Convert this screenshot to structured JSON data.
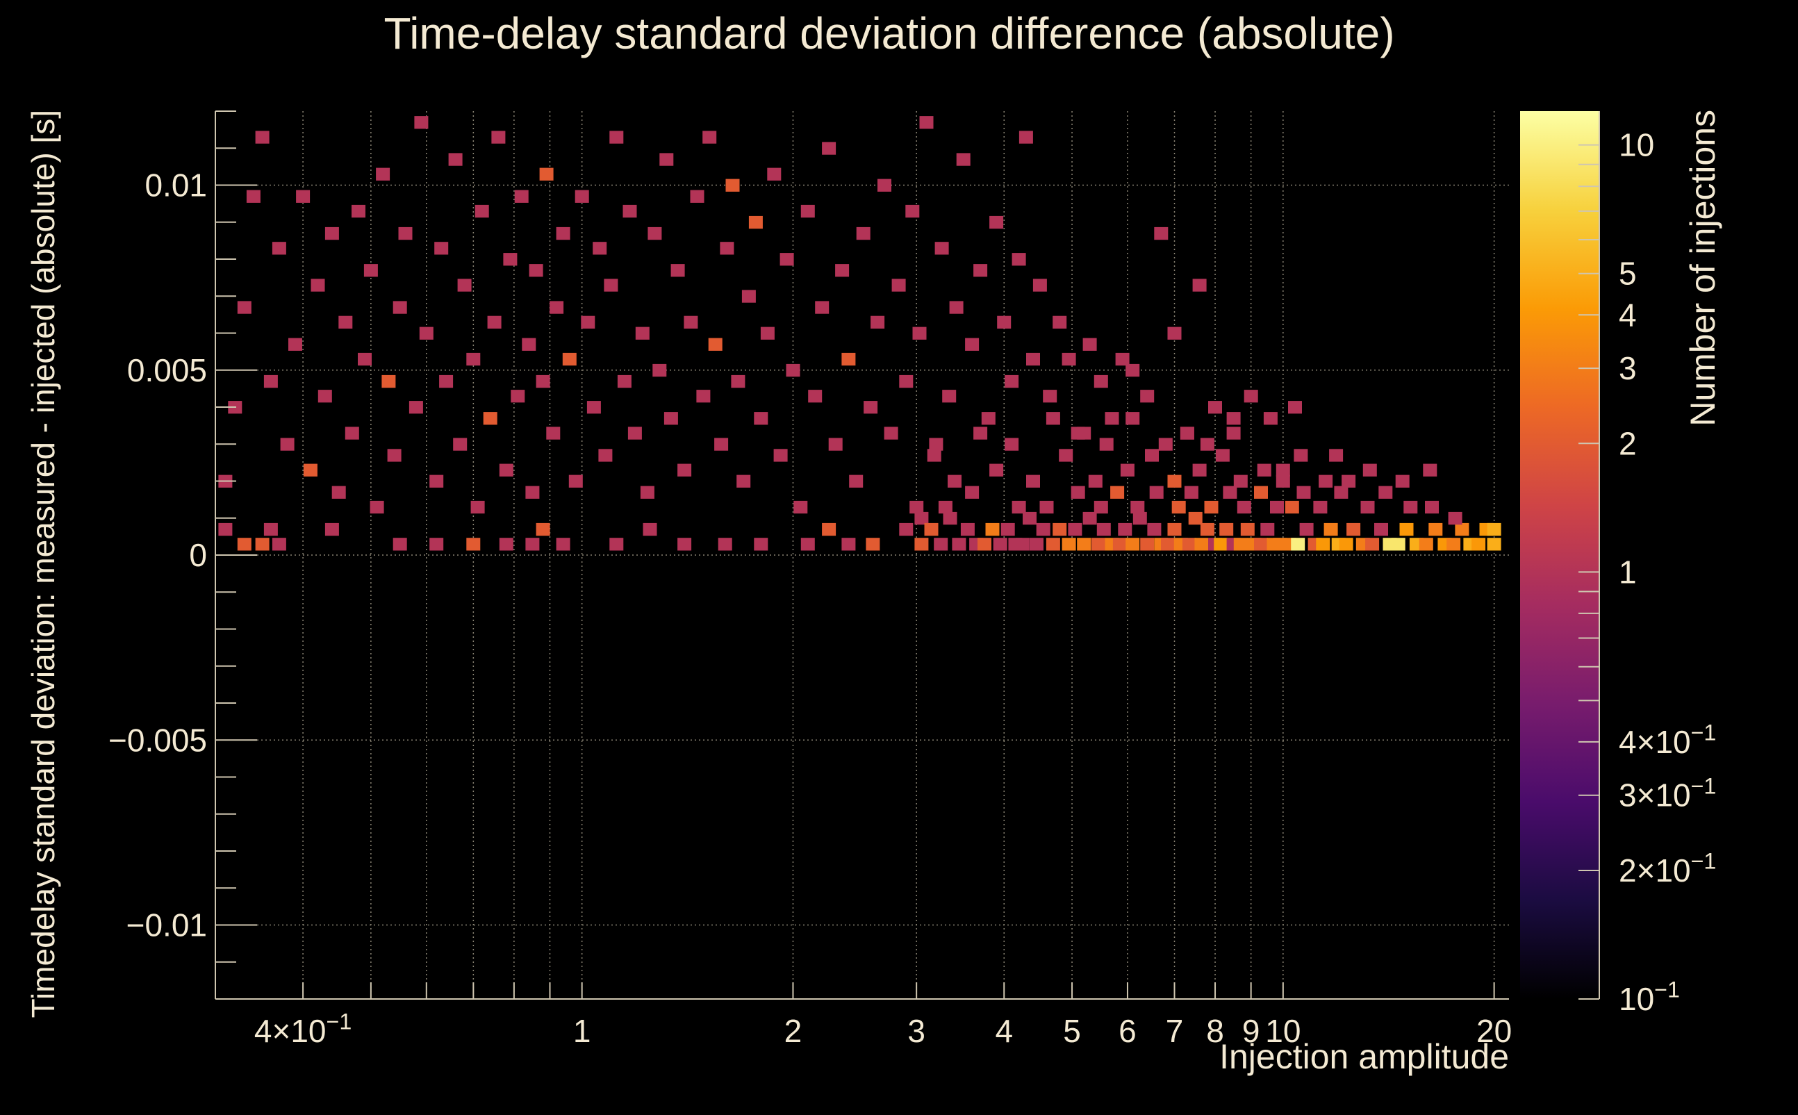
{
  "chart_data": {
    "type": "heatmap",
    "title": "Time-delay standard deviation difference (absolute)",
    "xlabel": "Injection amplitude",
    "ylabel": "Timedelay standard deviation: measured - injected (absolute) [s]",
    "colorbar_label": "Number of injections",
    "x_scale": "log",
    "xlim": [
      0.3,
      21
    ],
    "ylim": [
      -0.012,
      0.012
    ],
    "z_scale": "log",
    "zlim": [
      0.1,
      12
    ],
    "grid": true,
    "x_tick_labels": [
      {
        "value": 0.4,
        "label": "4×10",
        "exp": "−1"
      },
      {
        "value": 1,
        "label": "1"
      },
      {
        "value": 2,
        "label": "2"
      },
      {
        "value": 3,
        "label": "3"
      },
      {
        "value": 4,
        "label": "4"
      },
      {
        "value": 5,
        "label": "5"
      },
      {
        "value": 6,
        "label": "6"
      },
      {
        "value": 7,
        "label": "7"
      },
      {
        "value": 8,
        "label": "8"
      },
      {
        "value": 9,
        "label": "9"
      },
      {
        "value": 10,
        "label": "10"
      },
      {
        "value": 20,
        "label": "20"
      }
    ],
    "y_tick_labels": [
      {
        "value": 0.01,
        "label": "0.01"
      },
      {
        "value": 0.005,
        "label": "0.005"
      },
      {
        "value": 0,
        "label": "0"
      },
      {
        "value": -0.005,
        "label": "−0.005"
      },
      {
        "value": -0.01,
        "label": "−0.01"
      }
    ],
    "z_tick_labels": [
      {
        "value": 10,
        "label": "10"
      },
      {
        "value": 5,
        "label": "5"
      },
      {
        "value": 4,
        "label": "4"
      },
      {
        "value": 3,
        "label": "3"
      },
      {
        "value": 2,
        "label": "2"
      },
      {
        "value": 1,
        "label": "1"
      },
      {
        "value": 0.4,
        "label": "4×10",
        "exp": "−1"
      },
      {
        "value": 0.3,
        "label": "3×10",
        "exp": "−1"
      },
      {
        "value": 0.2,
        "label": "2×10",
        "exp": "−1"
      },
      {
        "value": 0.1,
        "label": "10",
        "exp": "−1"
      }
    ],
    "colormap": [
      "#000000",
      "#1b0c41",
      "#4a0c6b",
      "#781c6d",
      "#a52c60",
      "#cf4446",
      "#ed6925",
      "#fb9b06",
      "#f7d13d",
      "#fcffa4"
    ],
    "cells": [
      [
        0.31,
        0.0007,
        1
      ],
      [
        0.33,
        0.0003,
        2
      ],
      [
        0.35,
        0.0003,
        2
      ],
      [
        0.36,
        0.0007,
        1
      ],
      [
        0.37,
        0.0003,
        1
      ],
      [
        0.44,
        0.0007,
        1
      ],
      [
        0.55,
        0.0003,
        1
      ],
      [
        0.62,
        0.0003,
        1
      ],
      [
        0.7,
        0.0003,
        2
      ],
      [
        0.78,
        0.0003,
        1
      ],
      [
        0.85,
        0.0003,
        1
      ],
      [
        0.88,
        0.0007,
        2
      ],
      [
        0.94,
        0.0003,
        1
      ],
      [
        1.12,
        0.0003,
        1
      ],
      [
        1.25,
        0.0007,
        1
      ],
      [
        1.4,
        0.0003,
        1
      ],
      [
        1.6,
        0.0003,
        1
      ],
      [
        1.8,
        0.0003,
        1
      ],
      [
        2.1,
        0.0003,
        1
      ],
      [
        2.25,
        0.0007,
        2
      ],
      [
        2.4,
        0.0003,
        1
      ],
      [
        2.6,
        0.0003,
        2
      ],
      [
        2.9,
        0.0007,
        1
      ],
      [
        3.05,
        0.0003,
        2
      ],
      [
        3.05,
        0.001,
        1
      ],
      [
        3.15,
        0.0007,
        2
      ],
      [
        3.25,
        0.0003,
        1
      ],
      [
        3.35,
        0.001,
        1
      ],
      [
        3.45,
        0.0003,
        1
      ],
      [
        3.55,
        0.0007,
        1
      ],
      [
        3.65,
        0.0003,
        1
      ],
      [
        3.75,
        0.0003,
        2
      ],
      [
        3.85,
        0.0007,
        3
      ],
      [
        3.95,
        0.0003,
        1
      ],
      [
        4.05,
        0.0007,
        1
      ],
      [
        4.15,
        0.0003,
        1
      ],
      [
        4.25,
        0.0003,
        1
      ],
      [
        4.35,
        0.001,
        1
      ],
      [
        4.45,
        0.0003,
        1
      ],
      [
        4.55,
        0.0007,
        1
      ],
      [
        4.7,
        0.0003,
        2
      ],
      [
        4.8,
        0.0007,
        2
      ],
      [
        4.95,
        0.0003,
        3
      ],
      [
        5.05,
        0.0007,
        1
      ],
      [
        5.2,
        0.0003,
        3
      ],
      [
        5.3,
        0.001,
        1
      ],
      [
        5.45,
        0.0003,
        2
      ],
      [
        5.55,
        0.0007,
        1
      ],
      [
        5.7,
        0.0003,
        3
      ],
      [
        5.85,
        0.0003,
        2
      ],
      [
        5.95,
        0.0007,
        1
      ],
      [
        6.1,
        0.0003,
        3
      ],
      [
        6.25,
        0.001,
        1
      ],
      [
        6.4,
        0.0003,
        2
      ],
      [
        6.55,
        0.0007,
        1
      ],
      [
        6.7,
        0.0003,
        3
      ],
      [
        6.85,
        0.0003,
        2
      ],
      [
        7.0,
        0.0007,
        2
      ],
      [
        7.15,
        0.0003,
        3
      ],
      [
        7.35,
        0.0003,
        2
      ],
      [
        7.5,
        0.001,
        2
      ],
      [
        7.65,
        0.0003,
        3
      ],
      [
        7.8,
        0.0007,
        2
      ],
      [
        8.0,
        0.0003,
        1
      ],
      [
        8.15,
        0.0003,
        4
      ],
      [
        8.3,
        0.0007,
        2
      ],
      [
        8.5,
        0.0003,
        1
      ],
      [
        8.7,
        0.0003,
        3
      ],
      [
        8.9,
        0.0007,
        2
      ],
      [
        9.1,
        0.0003,
        3
      ],
      [
        9.3,
        0.0003,
        2
      ],
      [
        9.5,
        0.0007,
        1
      ],
      [
        9.7,
        0.0003,
        3
      ],
      [
        9.9,
        0.0003,
        3
      ],
      [
        10.2,
        0.0003,
        3
      ],
      [
        10.5,
        0.0003,
        10
      ],
      [
        10.8,
        0.0007,
        1
      ],
      [
        11.1,
        0.0003,
        2
      ],
      [
        11.4,
        0.0003,
        4
      ],
      [
        11.7,
        0.0007,
        3
      ],
      [
        12.0,
        0.0003,
        5
      ],
      [
        12.3,
        0.0003,
        4
      ],
      [
        12.6,
        0.0007,
        2
      ],
      [
        13.0,
        0.0003,
        3
      ],
      [
        13.4,
        0.0003,
        2
      ],
      [
        13.8,
        0.0007,
        1
      ],
      [
        14.2,
        0.0003,
        9
      ],
      [
        14.6,
        0.0003,
        9
      ],
      [
        15.0,
        0.0007,
        4
      ],
      [
        15.5,
        0.0003,
        5
      ],
      [
        16.0,
        0.0003,
        3
      ],
      [
        16.5,
        0.0007,
        3
      ],
      [
        17.0,
        0.0003,
        4
      ],
      [
        17.5,
        0.0003,
        3
      ],
      [
        18.0,
        0.0007,
        3
      ],
      [
        18.5,
        0.0003,
        5
      ],
      [
        19.0,
        0.0003,
        4
      ],
      [
        19.5,
        0.0007,
        4
      ],
      [
        20.0,
        0.0003,
        5
      ],
      [
        20.0,
        0.0007,
        5
      ],
      [
        3.0,
        0.0013,
        1
      ],
      [
        3.3,
        0.0013,
        1
      ],
      [
        3.6,
        0.0017,
        1
      ],
      [
        4.2,
        0.0013,
        1
      ],
      [
        4.6,
        0.0013,
        1
      ],
      [
        5.1,
        0.0017,
        1
      ],
      [
        5.5,
        0.0013,
        1
      ],
      [
        5.8,
        0.0017,
        2
      ],
      [
        6.2,
        0.0013,
        1
      ],
      [
        6.6,
        0.0017,
        1
      ],
      [
        7.1,
        0.0013,
        2
      ],
      [
        7.4,
        0.0017,
        1
      ],
      [
        7.9,
        0.0013,
        2
      ],
      [
        8.4,
        0.0017,
        1
      ],
      [
        8.8,
        0.0013,
        1
      ],
      [
        9.3,
        0.0017,
        2
      ],
      [
        9.8,
        0.0013,
        1
      ],
      [
        10.3,
        0.0013,
        2
      ],
      [
        10.7,
        0.0017,
        1
      ],
      [
        11.3,
        0.0013,
        1
      ],
      [
        12.1,
        0.0017,
        1
      ],
      [
        13.2,
        0.0013,
        1
      ],
      [
        14.0,
        0.0017,
        1
      ],
      [
        15.2,
        0.0013,
        1
      ],
      [
        16.3,
        0.0013,
        1
      ],
      [
        17.6,
        0.001,
        1
      ],
      [
        3.4,
        0.002,
        1
      ],
      [
        3.9,
        0.0023,
        1
      ],
      [
        4.4,
        0.002,
        1
      ],
      [
        4.9,
        0.0027,
        1
      ],
      [
        5.4,
        0.002,
        1
      ],
      [
        6.0,
        0.0023,
        1
      ],
      [
        6.5,
        0.0027,
        1
      ],
      [
        7.0,
        0.002,
        2
      ],
      [
        7.6,
        0.0023,
        1
      ],
      [
        8.2,
        0.0027,
        1
      ],
      [
        8.7,
        0.002,
        1
      ],
      [
        9.4,
        0.0023,
        1
      ],
      [
        10.0,
        0.002,
        1
      ],
      [
        10.0,
        0.0023,
        1
      ],
      [
        10.6,
        0.0027,
        1
      ],
      [
        11.5,
        0.002,
        1
      ],
      [
        12.4,
        0.002,
        1
      ],
      [
        13.3,
        0.0023,
        1
      ],
      [
        14.8,
        0.002,
        1
      ],
      [
        16.2,
        0.0023,
        1
      ],
      [
        3.2,
        0.003,
        1
      ],
      [
        3.7,
        0.0033,
        1
      ],
      [
        4.1,
        0.003,
        1
      ],
      [
        4.7,
        0.0037,
        1
      ],
      [
        5.2,
        0.0033,
        1
      ],
      [
        5.6,
        0.003,
        1
      ],
      [
        6.1,
        0.0037,
        1
      ],
      [
        6.8,
        0.003,
        1
      ],
      [
        7.3,
        0.0033,
        1
      ],
      [
        7.8,
        0.003,
        1
      ],
      [
        8.5,
        0.0033,
        1
      ],
      [
        9.6,
        0.0037,
        1
      ],
      [
        10.4,
        0.004,
        1
      ],
      [
        11.9,
        0.0027,
        1
      ],
      [
        0.31,
        0.002,
        1
      ],
      [
        0.32,
        0.004,
        1
      ],
      [
        0.33,
        0.0067,
        1
      ],
      [
        0.34,
        0.0097,
        1
      ],
      [
        0.35,
        0.0113,
        1
      ],
      [
        0.36,
        0.0047,
        1
      ],
      [
        0.37,
        0.0083,
        1
      ],
      [
        0.38,
        0.003,
        1
      ],
      [
        0.39,
        0.0057,
        1
      ],
      [
        0.4,
        0.0097,
        1
      ],
      [
        0.41,
        0.0023,
        2
      ],
      [
        0.42,
        0.0073,
        1
      ],
      [
        0.43,
        0.0043,
        1
      ],
      [
        0.44,
        0.0087,
        1
      ],
      [
        0.45,
        0.0017,
        1
      ],
      [
        0.46,
        0.0063,
        1
      ],
      [
        0.47,
        0.0033,
        1
      ],
      [
        0.48,
        0.0093,
        1
      ],
      [
        0.49,
        0.0053,
        1
      ],
      [
        0.5,
        0.0077,
        1
      ],
      [
        0.51,
        0.0013,
        1
      ],
      [
        0.52,
        0.0103,
        1
      ],
      [
        0.53,
        0.0047,
        2
      ],
      [
        0.54,
        0.0027,
        1
      ],
      [
        0.55,
        0.0067,
        1
      ],
      [
        0.56,
        0.0087,
        1
      ],
      [
        0.58,
        0.004,
        1
      ],
      [
        0.59,
        0.0117,
        1
      ],
      [
        0.6,
        0.006,
        1
      ],
      [
        0.62,
        0.002,
        1
      ],
      [
        0.63,
        0.0083,
        1
      ],
      [
        0.64,
        0.0047,
        1
      ],
      [
        0.66,
        0.0107,
        1
      ],
      [
        0.67,
        0.003,
        1
      ],
      [
        0.68,
        0.0073,
        1
      ],
      [
        0.7,
        0.0053,
        1
      ],
      [
        0.71,
        0.0013,
        1
      ],
      [
        0.72,
        0.0093,
        1
      ],
      [
        0.74,
        0.0037,
        2
      ],
      [
        0.75,
        0.0063,
        1
      ],
      [
        0.76,
        0.0113,
        1
      ],
      [
        0.78,
        0.0023,
        1
      ],
      [
        0.79,
        0.008,
        1
      ],
      [
        0.81,
        0.0043,
        1
      ],
      [
        0.82,
        0.0097,
        1
      ],
      [
        0.84,
        0.0057,
        1
      ],
      [
        0.85,
        0.0017,
        1
      ],
      [
        0.86,
        0.0077,
        1
      ],
      [
        0.88,
        0.0047,
        1
      ],
      [
        0.89,
        0.0103,
        2
      ],
      [
        0.91,
        0.0033,
        1
      ],
      [
        0.92,
        0.0067,
        1
      ],
      [
        0.94,
        0.0087,
        1
      ],
      [
        0.96,
        0.0053,
        2
      ],
      [
        0.98,
        0.002,
        1
      ],
      [
        1.0,
        0.0097,
        1
      ],
      [
        1.02,
        0.0063,
        1
      ],
      [
        1.04,
        0.004,
        1
      ],
      [
        1.06,
        0.0083,
        1
      ],
      [
        1.08,
        0.0027,
        1
      ],
      [
        1.1,
        0.0073,
        1
      ],
      [
        1.12,
        0.0113,
        1
      ],
      [
        1.15,
        0.0047,
        1
      ],
      [
        1.17,
        0.0093,
        1
      ],
      [
        1.19,
        0.0033,
        1
      ],
      [
        1.22,
        0.006,
        1
      ],
      [
        1.24,
        0.0017,
        1
      ],
      [
        1.27,
        0.0087,
        1
      ],
      [
        1.29,
        0.005,
        1
      ],
      [
        1.32,
        0.0107,
        1
      ],
      [
        1.34,
        0.0037,
        1
      ],
      [
        1.37,
        0.0077,
        1
      ],
      [
        1.4,
        0.0023,
        1
      ],
      [
        1.43,
        0.0063,
        1
      ],
      [
        1.46,
        0.0097,
        1
      ],
      [
        1.49,
        0.0043,
        1
      ],
      [
        1.52,
        0.0113,
        1
      ],
      [
        1.55,
        0.0057,
        2
      ],
      [
        1.58,
        0.003,
        1
      ],
      [
        1.61,
        0.0083,
        1
      ],
      [
        1.64,
        0.01,
        2
      ],
      [
        1.67,
        0.0047,
        1
      ],
      [
        1.7,
        0.002,
        1
      ],
      [
        1.73,
        0.007,
        1
      ],
      [
        1.77,
        0.009,
        2
      ],
      [
        1.8,
        0.0037,
        1
      ],
      [
        1.84,
        0.006,
        1
      ],
      [
        1.88,
        0.0103,
        1
      ],
      [
        1.92,
        0.0027,
        1
      ],
      [
        1.96,
        0.008,
        1
      ],
      [
        2.0,
        0.005,
        1
      ],
      [
        2.05,
        0.0013,
        1
      ],
      [
        2.1,
        0.0093,
        1
      ],
      [
        2.15,
        0.0043,
        1
      ],
      [
        2.2,
        0.0067,
        1
      ],
      [
        2.25,
        0.011,
        1
      ],
      [
        2.3,
        0.003,
        1
      ],
      [
        2.35,
        0.0077,
        1
      ],
      [
        2.4,
        0.0053,
        2
      ],
      [
        2.46,
        0.002,
        1
      ],
      [
        2.52,
        0.0087,
        1
      ],
      [
        2.58,
        0.004,
        1
      ],
      [
        2.64,
        0.0063,
        1
      ],
      [
        2.7,
        0.01,
        1
      ],
      [
        2.76,
        0.0033,
        1
      ],
      [
        2.83,
        0.0073,
        1
      ],
      [
        2.9,
        0.0047,
        1
      ],
      [
        2.96,
        0.0093,
        1
      ],
      [
        3.03,
        0.006,
        1
      ],
      [
        3.1,
        0.0117,
        1
      ],
      [
        3.18,
        0.0027,
        1
      ],
      [
        3.26,
        0.0083,
        1
      ],
      [
        3.34,
        0.0043,
        1
      ],
      [
        3.42,
        0.0067,
        1
      ],
      [
        3.5,
        0.0107,
        1
      ],
      [
        3.6,
        0.0057,
        1
      ],
      [
        3.7,
        0.0077,
        1
      ],
      [
        3.8,
        0.0037,
        1
      ],
      [
        3.9,
        0.009,
        1
      ],
      [
        4.0,
        0.0063,
        1
      ],
      [
        4.1,
        0.0047,
        1
      ],
      [
        4.2,
        0.008,
        1
      ],
      [
        4.3,
        0.0113,
        1
      ],
      [
        4.4,
        0.0053,
        1
      ],
      [
        4.5,
        0.0073,
        1
      ],
      [
        4.65,
        0.0043,
        1
      ],
      [
        4.8,
        0.0063,
        1
      ],
      [
        4.95,
        0.0053,
        1
      ],
      [
        5.1,
        0.0033,
        1
      ],
      [
        5.3,
        0.0057,
        1
      ],
      [
        5.5,
        0.0047,
        1
      ],
      [
        5.7,
        0.0037,
        1
      ],
      [
        5.9,
        0.0053,
        1
      ],
      [
        6.1,
        0.005,
        1
      ],
      [
        6.4,
        0.0043,
        1
      ],
      [
        6.7,
        0.0087,
        1
      ],
      [
        7.0,
        0.006,
        1
      ],
      [
        7.3,
        0.0033,
        1
      ],
      [
        7.6,
        0.0073,
        1
      ],
      [
        8.0,
        0.004,
        1
      ],
      [
        8.5,
        0.0037,
        1
      ],
      [
        9.0,
        0.0043,
        1
      ]
    ]
  }
}
